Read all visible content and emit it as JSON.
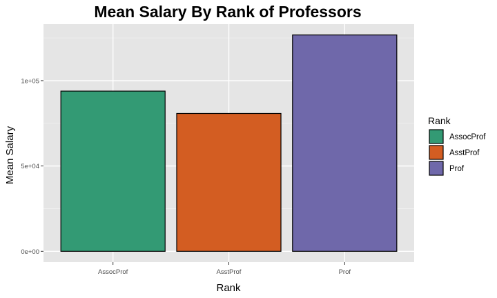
{
  "chart_data": {
    "type": "bar",
    "title": "Mean Salary By Rank of Professors",
    "xlabel": "Rank",
    "ylabel": "Mean Salary",
    "categories": [
      "AssocProf",
      "AsstProf",
      "Prof"
    ],
    "values": [
      93876,
      80776,
      126772
    ],
    "colors": [
      "#339a74",
      "#d35d22",
      "#6f68aa"
    ],
    "yticks": [
      0,
      50000,
      100000
    ],
    "ytick_labels": [
      "0e+00",
      "5e+04",
      "1e+05"
    ],
    "ylim": [
      -6339,
      133111
    ],
    "grid": true,
    "legend": {
      "title": "Rank",
      "position": "right",
      "entries": [
        "AssocProf",
        "AsstProf",
        "Prof"
      ]
    }
  }
}
